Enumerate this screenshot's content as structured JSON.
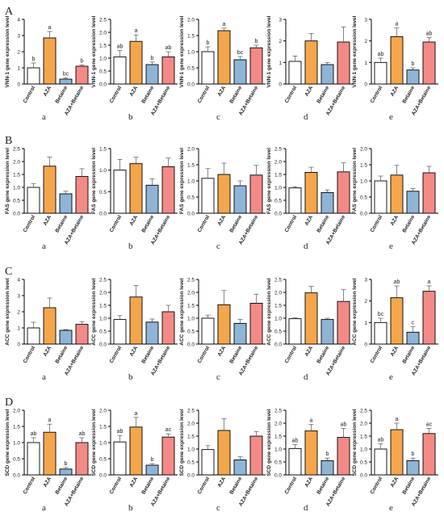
{
  "figure": {
    "colors": {
      "Control": "#ffffff",
      "AZA": "#f4a64c",
      "Betaine": "#8fb4d6",
      "AZA+Betaine": "#f38a86",
      "stroke": "#000000",
      "text": "#222222"
    },
    "groups": [
      "Control",
      "AZA",
      "Betaine",
      "AZA+Betaine"
    ],
    "sub_labels": [
      "a",
      "b",
      "c",
      "d",
      "e"
    ],
    "rows": [
      {
        "letter": "A",
        "ylabel": "VNN-1 gene expression level",
        "charts": [
          {
            "values": [
              1.0,
              2.85,
              0.3,
              1.1
            ],
            "errors": [
              0.3,
              0.4,
              0.08,
              0.08
            ],
            "ylim": [
              0,
              4
            ],
            "ticks": [
              "0",
              "1",
              "2",
              "3",
              "4"
            ],
            "letters": [
              "b",
              "a",
              "bc",
              "b"
            ]
          },
          {
            "values": [
              1.05,
              1.65,
              0.75,
              1.05
            ],
            "errors": [
              0.25,
              0.25,
              0.1,
              0.2
            ],
            "ylim": [
              0,
              2.5
            ],
            "ticks": [
              "0.0",
              "0.5",
              "1.0",
              "1.5",
              "2.0",
              "2.5"
            ],
            "letters": [
              "ab",
              "a",
              "b",
              "ab"
            ]
          },
          {
            "values": [
              1.0,
              1.65,
              0.75,
              1.12
            ],
            "errors": [
              0.15,
              0.08,
              0.1,
              0.08
            ],
            "ylim": [
              0,
              2.0
            ],
            "ticks": [
              "0.0",
              "0.5",
              "1.0",
              "1.5",
              "2.0"
            ],
            "letters": [
              "b",
              "a",
              "bc",
              "b"
            ]
          },
          {
            "values": [
              1.05,
              2.0,
              0.9,
              1.95
            ],
            "errors": [
              0.25,
              0.35,
              0.1,
              0.7
            ],
            "ylim": [
              0,
              3
            ],
            "ticks": [
              "0",
              "1",
              "2",
              "3"
            ],
            "letters": [
              "",
              "",
              "",
              ""
            ]
          },
          {
            "values": [
              1.0,
              2.2,
              0.65,
              1.95
            ],
            "errors": [
              0.2,
              0.4,
              0.1,
              0.2
            ],
            "ylim": [
              0,
              3
            ],
            "ticks": [
              "0",
              "1",
              "2",
              "3"
            ],
            "letters": [
              "ab",
              "a",
              "b",
              "ab"
            ]
          }
        ]
      },
      {
        "letter": "B",
        "ylabel": "FAS gene expression level",
        "charts": [
          {
            "values": [
              1.0,
              1.82,
              0.75,
              1.42
            ],
            "errors": [
              0.15,
              0.35,
              0.1,
              0.3
            ],
            "ylim": [
              0,
              2.5
            ],
            "ticks": [
              "0.0",
              "0.5",
              "1.0",
              "1.5",
              "2.0",
              "2.5"
            ],
            "letters": [
              "",
              "",
              "",
              ""
            ]
          },
          {
            "values": [
              1.0,
              1.15,
              0.65,
              1.08
            ],
            "errors": [
              0.25,
              0.15,
              0.15,
              0.2
            ],
            "ylim": [
              0,
              1.5
            ],
            "ticks": [
              "0.0",
              "0.5",
              "1.0",
              "1.5"
            ],
            "letters": [
              "",
              "",
              "",
              ""
            ]
          },
          {
            "values": [
              1.08,
              1.2,
              0.85,
              1.18
            ],
            "errors": [
              0.3,
              0.35,
              0.15,
              0.3
            ],
            "ylim": [
              0,
              2.0
            ],
            "ticks": [
              "0.0",
              "0.5",
              "1.0",
              "1.5",
              "2.0"
            ],
            "letters": [
              "",
              "",
              "",
              ""
            ]
          },
          {
            "values": [
              0.98,
              1.58,
              0.8,
              1.6
            ],
            "errors": [
              0.05,
              0.2,
              0.1,
              0.35
            ],
            "ylim": [
              0,
              2.5
            ],
            "ticks": [
              "0.0",
              "0.5",
              "1.0",
              "1.5",
              "2.0",
              "2.5"
            ],
            "letters": [
              "",
              "",
              "",
              ""
            ]
          },
          {
            "values": [
              1.0,
              1.18,
              0.68,
              1.25
            ],
            "errors": [
              0.15,
              0.3,
              0.08,
              0.2
            ],
            "ylim": [
              0,
              2.0
            ],
            "ticks": [
              "0.0",
              "0.5",
              "1.0",
              "1.5",
              "2.0"
            ],
            "letters": [
              "",
              "",
              "",
              ""
            ]
          }
        ]
      },
      {
        "letter": "C",
        "ylabel": "ACC gene expression level",
        "charts": [
          {
            "values": [
              1.0,
              2.25,
              0.85,
              1.22
            ],
            "errors": [
              0.35,
              0.6,
              0.05,
              0.15
            ],
            "ylim": [
              0,
              4
            ],
            "ticks": [
              "0",
              "1",
              "2",
              "3",
              "4"
            ],
            "letters": [
              "",
              "",
              "",
              ""
            ]
          },
          {
            "values": [
              0.95,
              1.82,
              0.85,
              1.25
            ],
            "errors": [
              0.15,
              0.45,
              0.12,
              0.25
            ],
            "ylim": [
              0,
              2.5
            ],
            "ticks": [
              "0.0",
              "0.5",
              "1.0",
              "1.5",
              "2.0",
              "2.5"
            ],
            "letters": [
              "",
              "",
              "",
              ""
            ]
          },
          {
            "values": [
              1.0,
              1.52,
              0.8,
              1.58
            ],
            "errors": [
              0.12,
              0.55,
              0.15,
              0.35
            ],
            "ylim": [
              0,
              2.5
            ],
            "ticks": [
              "0.0",
              "0.5",
              "1.0",
              "1.5",
              "2.0",
              "2.5"
            ],
            "letters": [
              "",
              "",
              "",
              ""
            ]
          },
          {
            "values": [
              0.98,
              1.98,
              0.95,
              1.65
            ],
            "errors": [
              0.03,
              0.25,
              0.05,
              0.45
            ],
            "ylim": [
              0,
              2.5
            ],
            "ticks": [
              "0.0",
              "0.5",
              "1.0",
              "1.5",
              "2.0",
              "2.5"
            ],
            "letters": [
              "",
              "",
              "",
              ""
            ]
          },
          {
            "values": [
              1.0,
              2.15,
              0.55,
              2.45
            ],
            "errors": [
              0.2,
              0.55,
              0.25,
              0.25
            ],
            "ylim": [
              0,
              3
            ],
            "ticks": [
              "0",
              "1",
              "2",
              "3"
            ],
            "letters": [
              "bc",
              "ab",
              "c",
              "a"
            ]
          }
        ]
      },
      {
        "letter": "D",
        "ylabel": "SCD gene expression level",
        "charts": [
          {
            "values": [
              1.0,
              1.32,
              0.18,
              1.0
            ],
            "errors": [
              0.15,
              0.25,
              0.05,
              0.15
            ],
            "ylim": [
              0,
              2.0
            ],
            "ticks": [
              "0.0",
              "0.5",
              "1.0",
              "1.5",
              "2.0"
            ],
            "letters": [
              "ab",
              "a",
              "b",
              "ab"
            ]
          },
          {
            "values": [
              1.02,
              1.48,
              0.3,
              1.17
            ],
            "errors": [
              0.2,
              0.3,
              0.05,
              0.1
            ],
            "ylim": [
              0,
              2.0
            ],
            "ticks": [
              "0.0",
              "0.5",
              "1.0",
              "1.5",
              "2.0"
            ],
            "letters": [
              "ab",
              "a",
              "b",
              "ac"
            ]
          },
          {
            "values": [
              0.98,
              1.72,
              0.58,
              1.5
            ],
            "errors": [
              0.15,
              0.45,
              0.12,
              0.18
            ],
            "ylim": [
              0,
              2.5
            ],
            "ticks": [
              "0.0",
              "0.5",
              "1.0",
              "1.5",
              "2.0",
              "2.5"
            ],
            "letters": [
              "",
              "",
              "",
              ""
            ]
          },
          {
            "values": [
              1.02,
              1.7,
              0.55,
              1.45
            ],
            "errors": [
              0.15,
              0.25,
              0.1,
              0.35
            ],
            "ylim": [
              0,
              2.5
            ],
            "ticks": [
              "0.0",
              "0.5",
              "1.0",
              "1.5",
              "2.0",
              "2.5"
            ],
            "letters": [
              "ab",
              "a",
              "b",
              "ab"
            ]
          },
          {
            "values": [
              1.0,
              1.75,
              0.55,
              1.6
            ],
            "errors": [
              0.2,
              0.25,
              0.1,
              0.2
            ],
            "ylim": [
              0,
              2.5
            ],
            "ticks": [
              "0.0",
              "0.5",
              "1.0",
              "1.5",
              "2.0",
              "2.5"
            ],
            "letters": [
              "ab",
              "a",
              "b",
              "ac"
            ]
          }
        ]
      }
    ]
  },
  "chart_data": {
    "type": "bar",
    "categories": [
      "Control",
      "AZA",
      "Betaine",
      "AZA+Betaine"
    ],
    "panels": [
      {
        "row": "A",
        "ylabel": "VNN-1 gene expression level",
        "subplots": [
          "a",
          "b",
          "c",
          "d",
          "e"
        ]
      },
      {
        "row": "B",
        "ylabel": "FAS gene expression level",
        "subplots": [
          "a",
          "b",
          "c",
          "d",
          "e"
        ]
      },
      {
        "row": "C",
        "ylabel": "ACC gene expression level",
        "subplots": [
          "a",
          "b",
          "c",
          "d",
          "e"
        ]
      },
      {
        "row": "D",
        "ylabel": "SCD gene expression level",
        "subplots": [
          "a",
          "b",
          "c",
          "d",
          "e"
        ]
      }
    ],
    "grid": false,
    "legend": "none"
  }
}
